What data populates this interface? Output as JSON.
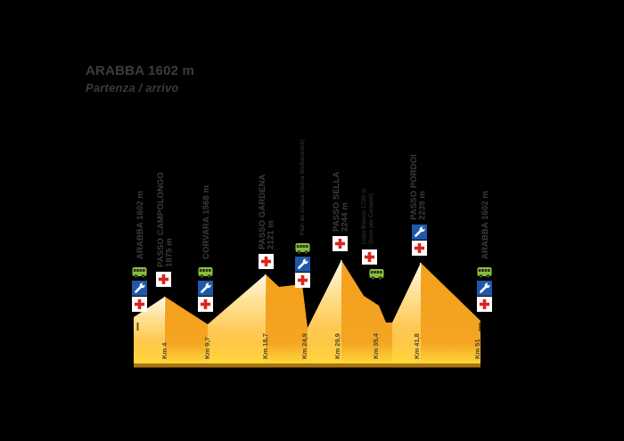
{
  "header": {
    "title": "ARABBA 1602 m",
    "subtitle": "Partenza / arrivo"
  },
  "colors": {
    "background": "#000000",
    "climb_face_top": "#fff8e6",
    "climb_face_bottom": "#ffc53b",
    "descent_face": "#f5a11d",
    "baseline_glow": "#ffd83d",
    "base_strip": "#a87311",
    "label_text": "#3c3c3c",
    "km_text": "#4f4735",
    "bus_green": "#8cc63e",
    "wrench_blue": "#1e59a9",
    "cross_red": "#d8261c"
  },
  "icon_legend": {
    "bus": "shuttle-bus",
    "wrench": "assistenza-meccanica",
    "cross": "assistenza-medica"
  },
  "chart_data": {
    "type": "area",
    "title": "ARABBA 1602 m — Partenza / arrivo",
    "x_unit": "Km",
    "y_unit": "m",
    "x_range_km": [
      0,
      51
    ],
    "grid": false,
    "legend_position": "none",
    "waypoints": [
      {
        "name": "ARABBA",
        "elevation_m": 1602,
        "km": 0,
        "km_label": "",
        "label_lines": [
          "ARABBA 1602 m"
        ],
        "style": "bold",
        "services": [
          "bus",
          "wrench",
          "cross"
        ]
      },
      {
        "name": "PASSO CAMPOLONGO",
        "elevation_m": 1875,
        "km": 4,
        "km_label": "Km 4",
        "label_lines": [
          "PASSO CAMPOLONGO",
          "1875 m"
        ],
        "style": "bold",
        "services": [
          "cross"
        ]
      },
      {
        "name": "CORVARA",
        "elevation_m": 1568,
        "km": 9.7,
        "km_label": "Km 9,7",
        "label_lines": [
          "CORVARA 1568 m"
        ],
        "style": "bold",
        "services": [
          "bus",
          "wrench",
          "cross"
        ]
      },
      {
        "name": "PASSO GARDENA",
        "elevation_m": 2121,
        "km": 18.7,
        "km_label": "Km 18,7",
        "label_lines": [
          "PASSO GARDENA",
          "2121 m"
        ],
        "style": "bold",
        "services": [
          "cross"
        ]
      },
      {
        "name": "Plan de Gralba",
        "elevation_m": null,
        "km": 24.9,
        "km_label": "Km 24,9",
        "label_lines": [
          "Plan de Gralba (Selva Wolkenstein)"
        ],
        "style": "small",
        "services": [
          "bus",
          "wrench",
          "cross"
        ]
      },
      {
        "name": "PASSO SELLA",
        "elevation_m": 2244,
        "km": 29.9,
        "km_label": "Km 29,9",
        "label_lines": [
          "PASSO SELLA",
          "2244 m"
        ],
        "style": "bold",
        "services": [
          "cross"
        ]
      },
      {
        "name": "Lupo Bianco",
        "elevation_m": 1720,
        "km": 35.4,
        "km_label": "Km 35,4",
        "label_lines": [
          "Lupo Bianco 1720 m",
          "(bivio per Canazei)"
        ],
        "style": "small",
        "services": [
          "cross",
          "bus"
        ]
      },
      {
        "name": "PASSO PORDOI",
        "elevation_m": 2239,
        "km": 41.8,
        "km_label": "Km 41,8",
        "label_lines": [
          "PASSO PORDOI",
          "2239 m"
        ],
        "style": "bold",
        "services": [
          "wrench",
          "cross"
        ]
      },
      {
        "name": "ARABBA",
        "elevation_m": 1602,
        "km": 51,
        "km_label": "Km 51",
        "label_lines": [
          "ARABBA 1602 m"
        ],
        "style": "bold",
        "services": [
          "bus",
          "wrench",
          "cross"
        ]
      }
    ]
  }
}
